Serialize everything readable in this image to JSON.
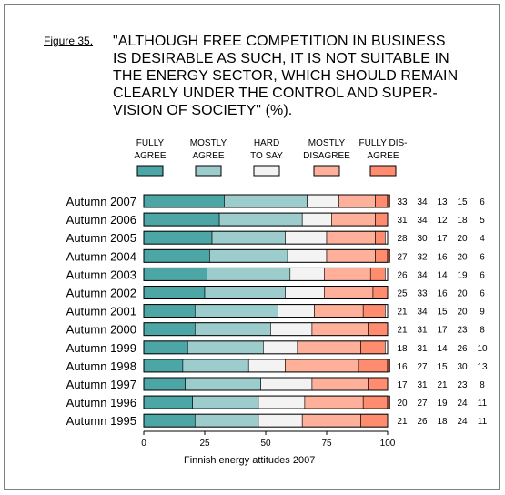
{
  "figure_label": "Figure 35.",
  "chart_data": {
    "type": "bar",
    "orientation": "horizontal",
    "stacked": true,
    "title_lines": [
      "\"ALTHOUGH FREE COMPETITION IN BUSINESS",
      "IS DESIRABLE AS SUCH, IT IS NOT SUITABLE IN",
      "THE ENERGY SECTOR, WHICH SHOULD REMAIN",
      "CLEARLY UNDER THE CONTROL AND SUPER-",
      "VISION OF SOCIETY\" (%)."
    ],
    "categories": [
      "Autumn 2007",
      "Autumn 2006",
      "Autumn 2005",
      "Autumn 2004",
      "Autumn 2003",
      "Autumn 2002",
      "Autumn 2001",
      "Autumn 2000",
      "Autumn 1999",
      "Autumn 1998",
      "Autumn 1997",
      "Autumn 1996",
      "Autumn 1995"
    ],
    "series": [
      {
        "name": [
          "FULLY",
          "AGREE"
        ],
        "color": "#4da6a6",
        "values": [
          33,
          31,
          28,
          27,
          26,
          25,
          21,
          21,
          18,
          16,
          17,
          20,
          21
        ]
      },
      {
        "name": [
          "MOSTLY",
          "AGREE"
        ],
        "color": "#9ccccc",
        "values": [
          34,
          34,
          30,
          32,
          34,
          33,
          34,
          31,
          31,
          27,
          31,
          27,
          26
        ]
      },
      {
        "name": [
          "HARD",
          "TO SAY"
        ],
        "color": "#f3f3f3",
        "values": [
          13,
          12,
          17,
          16,
          14,
          16,
          15,
          17,
          14,
          15,
          21,
          19,
          18
        ]
      },
      {
        "name": [
          "MOSTLY",
          "DISAGREE"
        ],
        "color": "#ffb09a",
        "values": [
          15,
          18,
          20,
          20,
          19,
          20,
          20,
          23,
          26,
          30,
          23,
          24,
          24
        ]
      },
      {
        "name": [
          "FULLY DIS-",
          "AGREE"
        ],
        "color": "#ff8c6e",
        "values": [
          6,
          5,
          4,
          6,
          6,
          6,
          9,
          8,
          10,
          13,
          8,
          11,
          11
        ]
      }
    ],
    "xlim": [
      0,
      100
    ],
    "xticks": [
      "0",
      "25",
      "50",
      "75",
      "100"
    ],
    "source": "Finnish energy attitudes 2007"
  }
}
